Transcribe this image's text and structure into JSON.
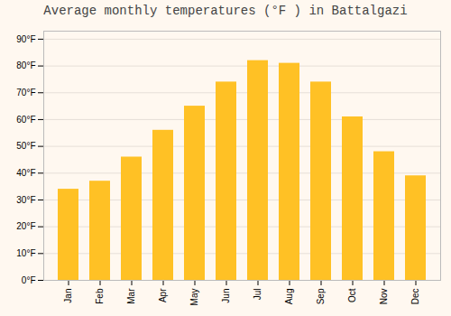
{
  "chart_data": {
    "type": "bar",
    "title": "Average monthly temperatures (°F ) in Battalgazi",
    "categories": [
      "Jan",
      "Feb",
      "Mar",
      "Apr",
      "May",
      "Jun",
      "Jul",
      "Aug",
      "Sep",
      "Oct",
      "Nov",
      "Dec"
    ],
    "values": [
      34,
      37,
      46,
      56,
      65,
      74,
      82,
      81,
      74,
      61,
      48,
      39
    ],
    "color": "#FFC125",
    "ylim": [
      0,
      93
    ],
    "yticks": [
      {
        "value": 0,
        "label": "0°F"
      },
      {
        "value": 10,
        "label": "10°F"
      },
      {
        "value": 20,
        "label": "20°F"
      },
      {
        "value": 30,
        "label": "30°F"
      },
      {
        "value": 40,
        "label": "40°F"
      },
      {
        "value": 50,
        "label": "50°F"
      },
      {
        "value": 60,
        "label": "60°F"
      },
      {
        "value": 70,
        "label": "70°F"
      },
      {
        "value": 80,
        "label": "80°F"
      },
      {
        "value": 90,
        "label": "90°F"
      }
    ],
    "grid": true
  }
}
